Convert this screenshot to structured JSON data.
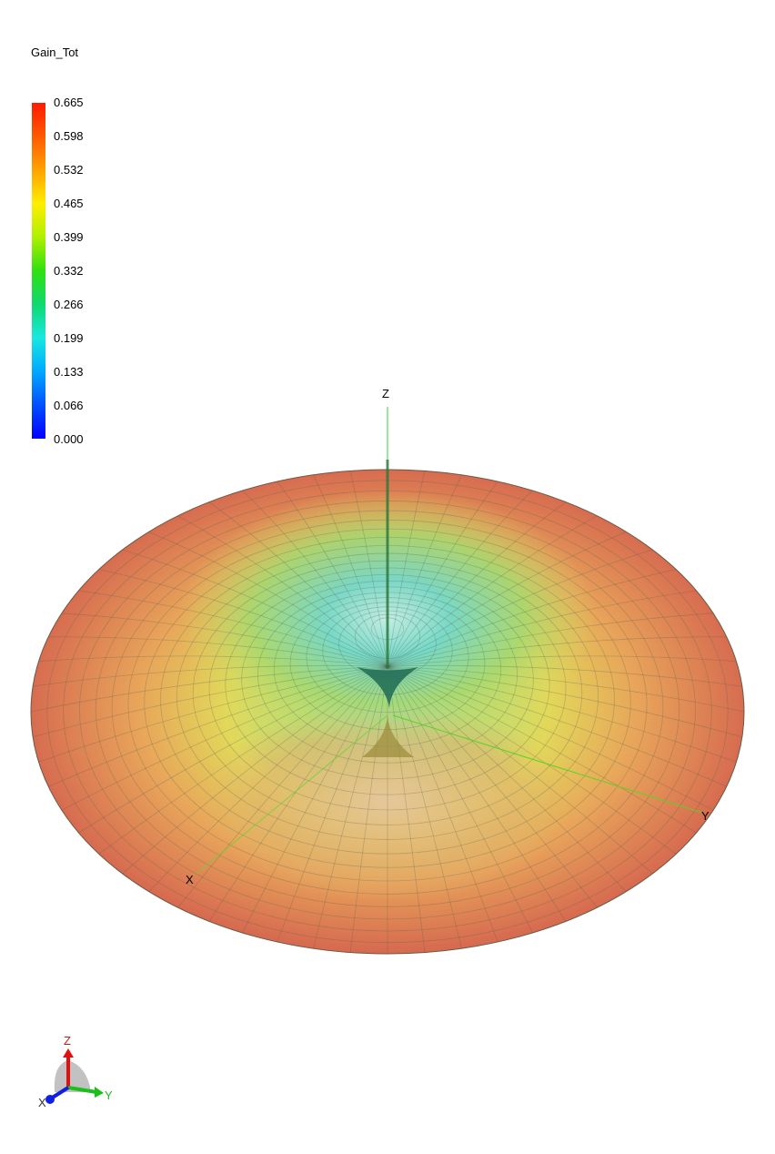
{
  "chart_data": {
    "type": "3d-radiation-pattern",
    "quantity": "Gain_Tot",
    "colorbar": {
      "title": "Gain_Tot",
      "min": 0.0,
      "max": 0.665,
      "ticks": [
        "0.665",
        "0.598",
        "0.532",
        "0.465",
        "0.399",
        "0.332",
        "0.266",
        "0.199",
        "0.133",
        "0.066",
        "0.000"
      ],
      "colors": [
        "#ff1a00",
        "#ff5a00",
        "#ffa200",
        "#ffee00",
        "#aef000",
        "#30e010",
        "#10d870",
        "#18e8e0",
        "#00a8ff",
        "#0050ff",
        "#0000ff"
      ]
    },
    "axes": {
      "x": "X",
      "y": "Y",
      "z": "Z"
    },
    "pattern": "doughnut (dipole-like), maximum gain in horizontal plane, null along Z axis"
  },
  "orientation_triad": {
    "x": "X",
    "y": "Y",
    "z": "Z"
  }
}
